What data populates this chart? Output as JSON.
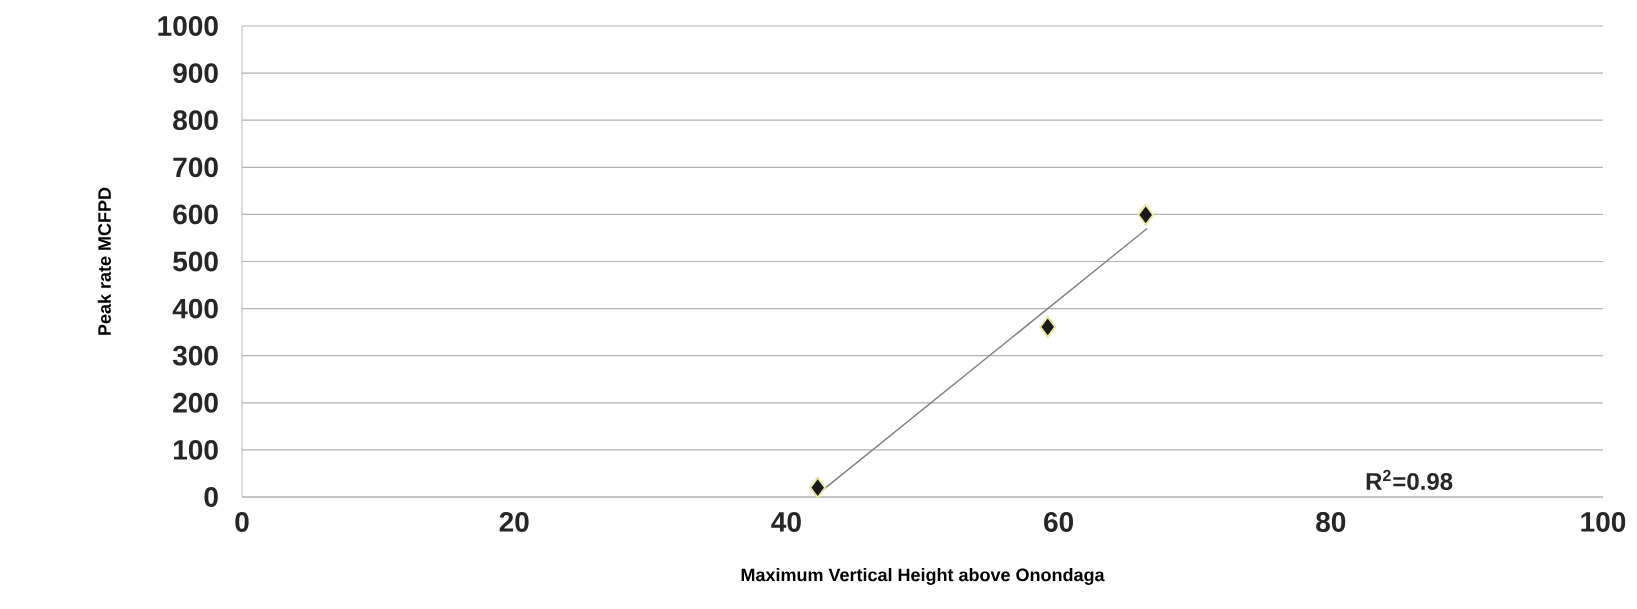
{
  "chart_data": {
    "type": "scatter",
    "xlabel": "Maximum Vertical Height above Onondaga",
    "ylabel": "Peak rate MCFPD",
    "annotations": [
      "R$^{2}$=0.98"
    ],
    "series": [
      {
        "marker": "diamond",
        "color": "#1a1a1a",
        "x": [
          42.3,
          59.2,
          66.4
        ],
        "values": [
          20,
          361,
          599
        ]
      },
      {
        "type": "line",
        "marker": "none",
        "color": "#808080",
        "x": [
          42.6,
          66.5
        ],
        "values": [
          13,
          570
        ]
      }
    ],
    "xlim": [
      0,
      100
    ],
    "ylim": [
      0,
      1000
    ],
    "xticks": [
      0,
      20,
      40,
      60,
      80,
      100
    ],
    "yticks": [
      0,
      100,
      200,
      300,
      400,
      500,
      600,
      700,
      800,
      900,
      1000
    ],
    "grid": "y"
  }
}
